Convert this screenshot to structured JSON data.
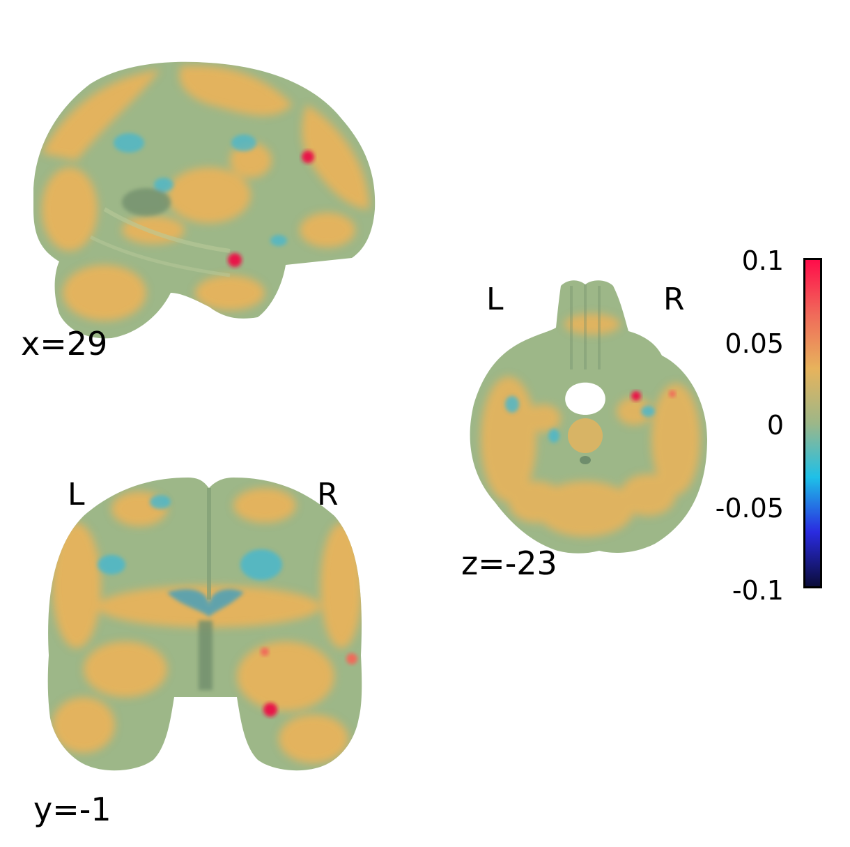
{
  "panels": {
    "sagittal": {
      "coord_label": "x=29"
    },
    "coronal": {
      "coord_label": "y=-1",
      "left_label": "L",
      "right_label": "R"
    },
    "axial": {
      "coord_label": "z=-23",
      "left_label": "L",
      "right_label": "R"
    }
  },
  "colorbar": {
    "ticks": [
      "0.1",
      "0.05",
      "0",
      "-0.05",
      "-0.1"
    ],
    "range": [
      -0.1,
      0.1
    ],
    "colors": [
      "#0b0d3a",
      "#2a2be0",
      "#1ec0e8",
      "#9db788",
      "#e7b35c",
      "#f06a5a",
      "#ff0d4a"
    ]
  },
  "colors": {
    "brain_green": "#9db788",
    "brain_dark": "#7f9d76",
    "activation_orange": "#e7b35c",
    "activation_blue": "#45b7d0",
    "activation_red": "#e8194a"
  }
}
